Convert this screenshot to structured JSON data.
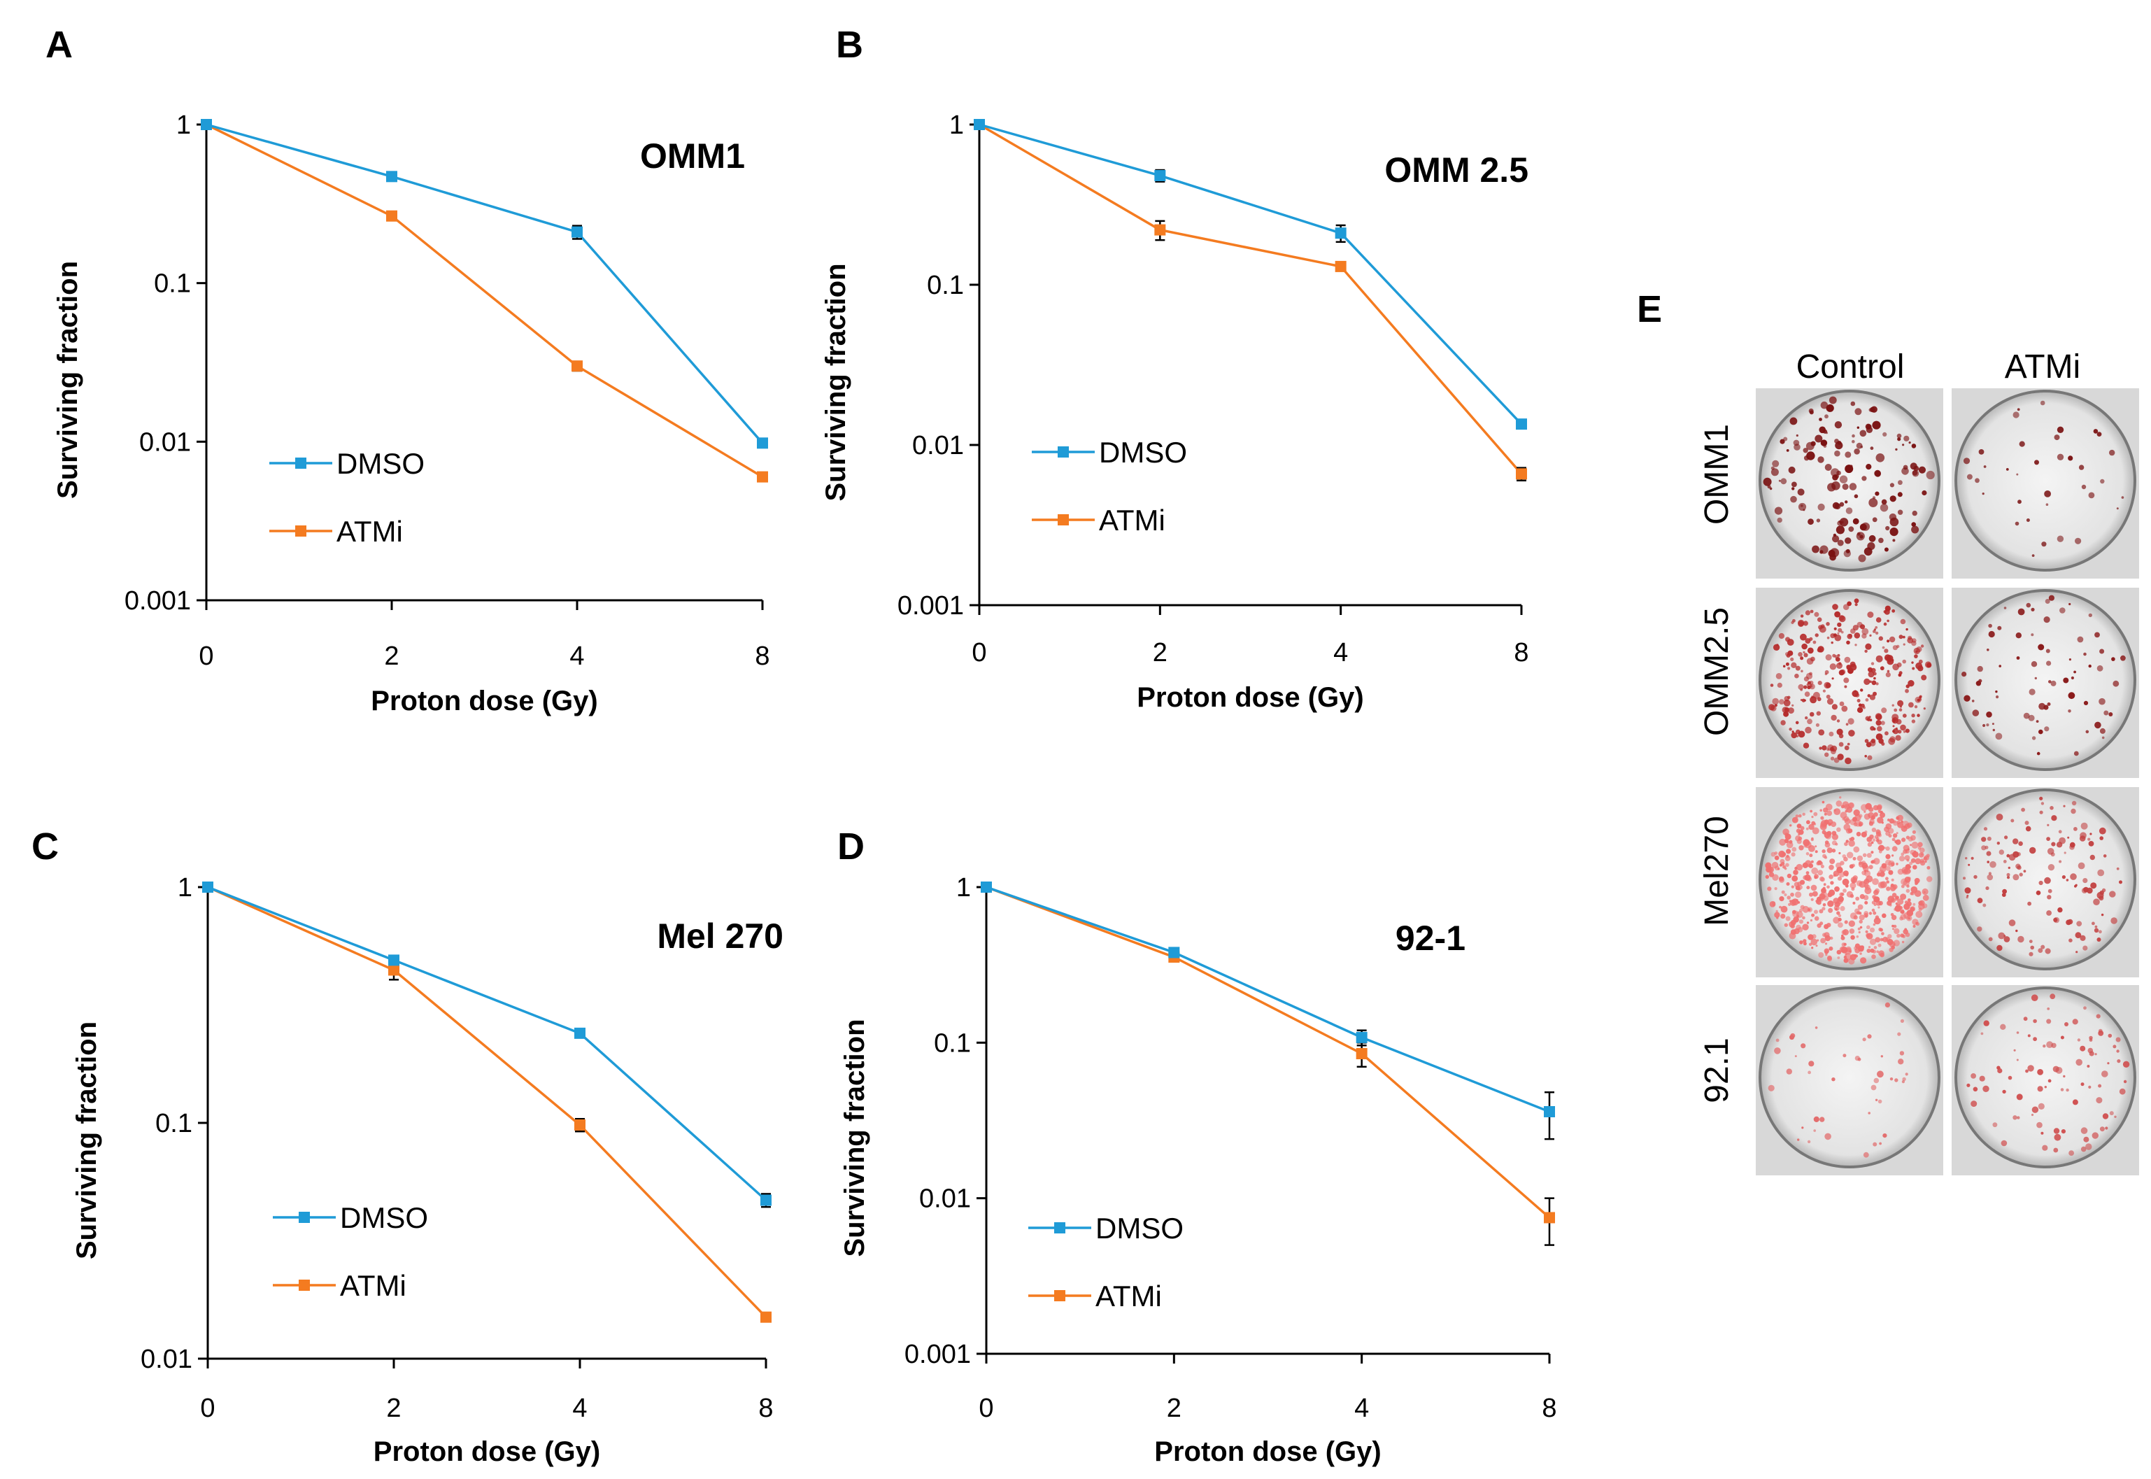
{
  "chart_data": [
    {
      "id": "A",
      "type": "line",
      "panel_label": "A",
      "title": "OMM1",
      "xlabel": "Proton dose (Gy)",
      "ylabel": "Surviving fraction",
      "yscale": "log",
      "ylim": [
        0.001,
        1
      ],
      "yticks": [
        "1",
        "0.1",
        "0.01",
        "0.001"
      ],
      "categories": [
        "0",
        "2",
        "4",
        "8"
      ],
      "legend_position": "bottom-left",
      "series": [
        {
          "name": "DMSO",
          "color": "#1f9bd7",
          "values": [
            1,
            0.47,
            0.21,
            0.0098
          ],
          "errors": [
            0,
            0.02,
            0.02,
            0.0005
          ]
        },
        {
          "name": "ATMi",
          "color": "#f47b20",
          "values": [
            1,
            0.265,
            0.03,
            0.006
          ],
          "errors": [
            0,
            0.012,
            0.002,
            0.0003
          ]
        }
      ]
    },
    {
      "id": "B",
      "type": "line",
      "panel_label": "B",
      "title": "OMM 2.5",
      "xlabel": "Proton dose (Gy)",
      "ylabel": "Surviving fraction",
      "yscale": "log",
      "ylim": [
        0.001,
        1
      ],
      "yticks": [
        "1",
        "0.1",
        "0.01",
        "0.001"
      ],
      "categories": [
        "0",
        "2",
        "4",
        "8"
      ],
      "legend_position": "bottom-left",
      "series": [
        {
          "name": "DMSO",
          "color": "#1f9bd7",
          "values": [
            1,
            0.48,
            0.21,
            0.0135
          ],
          "errors": [
            0,
            0.04,
            0.025,
            0.0006
          ]
        },
        {
          "name": "ATMi",
          "color": "#f47b20",
          "values": [
            1,
            0.22,
            0.13,
            0.0066
          ],
          "errors": [
            0,
            0.03,
            0.008,
            0.0006
          ]
        }
      ]
    },
    {
      "id": "C",
      "type": "line",
      "panel_label": "C",
      "title": "Mel 270",
      "xlabel": "Proton dose (Gy)",
      "ylabel": "Surviving fraction",
      "yscale": "log",
      "ylim": [
        0.01,
        1
      ],
      "yticks": [
        "1",
        "0.1",
        "0.01"
      ],
      "categories": [
        "0",
        "2",
        "4",
        "8"
      ],
      "legend_position": "bottom-left",
      "series": [
        {
          "name": "DMSO",
          "color": "#1f9bd7",
          "values": [
            1,
            0.49,
            0.24,
            0.047
          ],
          "errors": [
            0,
            0.02,
            0.008,
            0.003
          ]
        },
        {
          "name": "ATMi",
          "color": "#f47b20",
          "values": [
            1,
            0.445,
            0.098,
            0.015
          ],
          "errors": [
            0,
            0.04,
            0.006,
            0.0005
          ]
        }
      ]
    },
    {
      "id": "D",
      "type": "line",
      "panel_label": "D",
      "title": "92-1",
      "xlabel": "Proton dose (Gy)",
      "ylabel": "Surviving fraction",
      "yscale": "log",
      "ylim": [
        0.001,
        1
      ],
      "yticks": [
        "1",
        "0.1",
        "0.01",
        "0.001"
      ],
      "categories": [
        "0",
        "2",
        "4",
        "8"
      ],
      "legend_position": "bottom-left",
      "series": [
        {
          "name": "DMSO",
          "color": "#1f9bd7",
          "values": [
            1,
            0.38,
            0.108,
            0.036
          ],
          "errors": [
            0,
            0.02,
            0.012,
            0.012
          ]
        },
        {
          "name": "ATMi",
          "color": "#f47b20",
          "values": [
            1,
            0.355,
            0.085,
            0.0075
          ],
          "errors": [
            0,
            0.02,
            0.015,
            0.0025
          ]
        }
      ]
    }
  ],
  "panel_e": {
    "label": "E",
    "columns": [
      "Control",
      "ATMi"
    ],
    "rows": [
      "OMM1",
      "OMM2.5",
      "Mel270",
      "92.1"
    ]
  }
}
